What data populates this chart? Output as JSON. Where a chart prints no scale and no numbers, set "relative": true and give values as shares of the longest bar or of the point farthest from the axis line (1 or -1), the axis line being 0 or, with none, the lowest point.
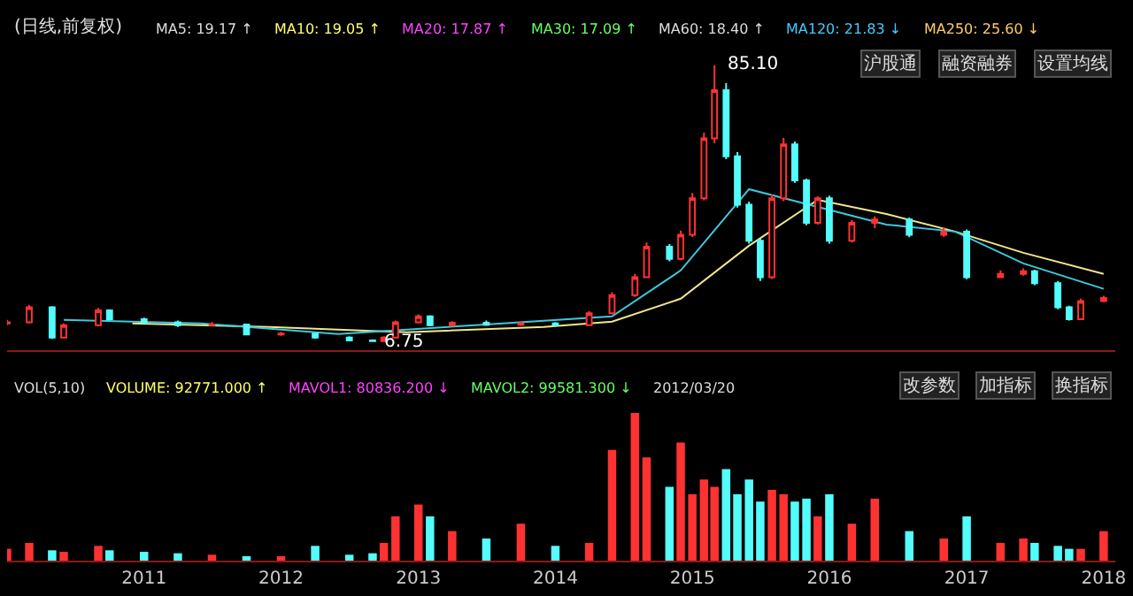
{
  "chart_data": [
    {
      "type": "candlestick",
      "title": "(日线,前复权)",
      "x": [
        "2010-01",
        "2010-03",
        "2010-05",
        "2010-06",
        "2010-09",
        "2010-10",
        "2011-01",
        "2011-04",
        "2011-07",
        "2011-10",
        "2012-01",
        "2012-04",
        "2012-07",
        "2012-09",
        "2012-10",
        "2012-11",
        "2013-01",
        "2013-02",
        "2013-04",
        "2013-07",
        "2013-10",
        "2014-01",
        "2014-04",
        "2014-06",
        "2014-08",
        "2014-09",
        "2014-11",
        "2014-12",
        "2015-01",
        "2015-02",
        "2015-03",
        "2015-04",
        "2015-05",
        "2015-06",
        "2015-07",
        "2015-08",
        "2015-09",
        "2015-10",
        "2015-11",
        "2015-12",
        "2016-01",
        "2016-03",
        "2016-05",
        "2016-08",
        "2016-11",
        "2017-01",
        "2017-04",
        "2017-06",
        "2017-07",
        "2017-09",
        "2017-10",
        "2017-11",
        "2018-01"
      ],
      "ohlc": [
        [
          12.0,
          13.0,
          11.5,
          12.3
        ],
        [
          12.3,
          17.2,
          12.0,
          16.6
        ],
        [
          16.6,
          16.9,
          7.6,
          8.0
        ],
        [
          8.0,
          12.0,
          7.8,
          11.5
        ],
        [
          11.5,
          16.4,
          11.2,
          15.7
        ],
        [
          15.7,
          16.0,
          12.8,
          13.2
        ],
        [
          13.2,
          13.6,
          11.9,
          12.3
        ],
        [
          12.3,
          12.8,
          11.0,
          11.5
        ],
        [
          11.5,
          12.4,
          11.1,
          11.7
        ],
        [
          11.7,
          11.8,
          8.6,
          8.9
        ],
        [
          8.9,
          9.6,
          8.5,
          9.1
        ],
        [
          9.1,
          9.2,
          7.7,
          8.0
        ],
        [
          8.0,
          8.4,
          7.0,
          7.2
        ],
        [
          7.2,
          7.5,
          6.75,
          7.0
        ],
        [
          7.0,
          8.4,
          6.9,
          8.0
        ],
        [
          8.0,
          12.8,
          7.9,
          12.3
        ],
        [
          12.3,
          14.6,
          12.0,
          14.0
        ],
        [
          14.0,
          14.3,
          11.2,
          11.5
        ],
        [
          11.5,
          12.6,
          11.2,
          12.2
        ],
        [
          12.2,
          12.8,
          11.3,
          11.6
        ],
        [
          11.6,
          12.5,
          11.3,
          12.0
        ],
        [
          12.0,
          12.4,
          11.2,
          11.5
        ],
        [
          11.5,
          15.5,
          11.4,
          14.9
        ],
        [
          14.9,
          20.8,
          14.6,
          20.0
        ],
        [
          20.0,
          26.0,
          19.5,
          25.1
        ],
        [
          25.1,
          34.9,
          24.8,
          33.7
        ],
        [
          33.7,
          34.5,
          29.6,
          30.3
        ],
        [
          30.3,
          38.3,
          29.9,
          37.1
        ],
        [
          37.1,
          48.9,
          36.5,
          47.4
        ],
        [
          47.4,
          66.0,
          46.8,
          64.4
        ],
        [
          64.4,
          85.1,
          63.0,
          78.0
        ],
        [
          78.0,
          80.0,
          58.5,
          59.3
        ],
        [
          59.3,
          60.5,
          44.8,
          45.6
        ],
        [
          45.6,
          46.5,
          34.6,
          35.4
        ],
        [
          35.4,
          36.0,
          24.0,
          25.1
        ],
        [
          25.1,
          48.5,
          24.6,
          47.4
        ],
        [
          47.4,
          64.5,
          46.6,
          62.7
        ],
        [
          62.7,
          63.5,
          51.8,
          52.5
        ],
        [
          52.5,
          53.0,
          39.8,
          40.5
        ],
        [
          40.5,
          48.0,
          40.0,
          47.4
        ],
        [
          47.4,
          48.2,
          34.6,
          35.4
        ],
        [
          35.4,
          41.2,
          34.9,
          40.5
        ],
        [
          40.5,
          42.3,
          39.0,
          41.4
        ],
        [
          41.4,
          42.0,
          36.4,
          37.1
        ],
        [
          37.1,
          39.2,
          36.5,
          38.0
        ],
        [
          38.0,
          38.6,
          24.5,
          25.1
        ],
        [
          25.1,
          27.0,
          24.8,
          26.0
        ],
        [
          26.0,
          27.6,
          25.5,
          26.8
        ],
        [
          26.8,
          27.2,
          22.8,
          23.4
        ],
        [
          23.4,
          24.0,
          16.0,
          16.6
        ],
        [
          16.6,
          17.0,
          12.8,
          13.2
        ],
        [
          13.2,
          19.0,
          13.0,
          18.3
        ],
        [
          18.3,
          19.8,
          18.0,
          19.2
        ]
      ],
      "series": [
        {
          "type": "line",
          "color": "#f0e68c",
          "x": [
            "2010-12",
            "2011-12",
            "2012-12",
            "2013-12",
            "2014-06",
            "2014-12",
            "2015-06",
            "2015-12",
            "2016-06",
            "2016-12",
            "2017-06",
            "2018-01"
          ],
          "values": [
            12.0,
            11.0,
            9.5,
            11.0,
            12.5,
            19.0,
            34.0,
            47.0,
            43.0,
            38.0,
            32.0,
            26.0
          ]
        },
        {
          "type": "line",
          "color": "#3cc8dc",
          "x": [
            "2010-06",
            "2011-06",
            "2012-06",
            "2013-06",
            "2014-06",
            "2014-12",
            "2015-06",
            "2015-12",
            "2016-06",
            "2016-12",
            "2017-06",
            "2018-01"
          ],
          "values": [
            13.0,
            12.0,
            9.0,
            11.5,
            14.0,
            27.0,
            50.0,
            45.0,
            40.0,
            38.0,
            29.0,
            21.8
          ]
        }
      ],
      "xlim": [
        "2010-01-01",
        "2018-02-01"
      ],
      "tick_labels": false,
      "annotations": [
        "MA5: 19.17 ↑",
        "MA10: 19.05 ↑",
        "MA20: 17.87 ↑",
        "MA30: 17.09 ↑",
        "MA60: 18.40 ↑",
        "MA120: 21.83 ↓",
        "MA250: 25.60 ↓",
        "沪股通",
        "融资融券",
        "设置均线",
        {
          "text": "85.10",
          "x": "2015-03",
          "y": 85.1
        },
        {
          "text": "6.75",
          "x": "2012-09",
          "y": 6.75
        }
      ]
    },
    {
      "type": "bar",
      "relative": true,
      "x": [
        "2010-01",
        "2010-03",
        "2010-05",
        "2010-06",
        "2010-09",
        "2010-10",
        "2011-01",
        "2011-04",
        "2011-07",
        "2011-10",
        "2012-01",
        "2012-04",
        "2012-07",
        "2012-09",
        "2012-10",
        "2012-11",
        "2013-01",
        "2013-02",
        "2013-04",
        "2013-07",
        "2013-10",
        "2014-01",
        "2014-04",
        "2014-06",
        "2014-08",
        "2014-09",
        "2014-11",
        "2014-12",
        "2015-01",
        "2015-02",
        "2015-03",
        "2015-04",
        "2015-05",
        "2015-06",
        "2015-07",
        "2015-08",
        "2015-09",
        "2015-10",
        "2015-11",
        "2015-12",
        "2016-01",
        "2016-03",
        "2016-05",
        "2016-08",
        "2016-11",
        "2017-01",
        "2017-04",
        "2017-06",
        "2017-07",
        "2017-09",
        "2017-10",
        "2017-11",
        "2018-01"
      ],
      "values": [
        0.08,
        0.12,
        0.07,
        0.06,
        0.1,
        0.07,
        0.06,
        0.05,
        0.04,
        0.03,
        0.03,
        0.1,
        0.04,
        0.05,
        0.12,
        0.3,
        0.38,
        0.3,
        0.2,
        0.15,
        0.25,
        0.1,
        0.12,
        0.75,
        1.0,
        0.7,
        0.5,
        0.8,
        0.45,
        0.55,
        0.5,
        0.62,
        0.45,
        0.55,
        0.4,
        0.48,
        0.45,
        0.4,
        0.42,
        0.3,
        0.45,
        0.25,
        0.42,
        0.2,
        0.15,
        0.3,
        0.12,
        0.15,
        0.12,
        0.1,
        0.08,
        0.08,
        0.2
      ],
      "colors": [
        "#ff3232",
        "#ff3232",
        "#54fcfc",
        "#ff3232",
        "#ff3232",
        "#54fcfc",
        "#54fcfc",
        "#54fcfc",
        "#ff3232",
        "#54fcfc",
        "#ff3232",
        "#54fcfc",
        "#54fcfc",
        "#54fcfc",
        "#ff3232",
        "#ff3232",
        "#ff3232",
        "#54fcfc",
        "#ff3232",
        "#54fcfc",
        "#ff3232",
        "#54fcfc",
        "#ff3232",
        "#ff3232",
        "#ff3232",
        "#ff3232",
        "#54fcfc",
        "#ff3232",
        "#ff3232",
        "#ff3232",
        "#ff3232",
        "#54fcfc",
        "#54fcfc",
        "#54fcfc",
        "#54fcfc",
        "#ff3232",
        "#ff3232",
        "#54fcfc",
        "#54fcfc",
        "#ff3232",
        "#54fcfc",
        "#ff3232",
        "#ff3232",
        "#54fcfc",
        "#ff3232",
        "#54fcfc",
        "#ff3232",
        "#ff3232",
        "#54fcfc",
        "#54fcfc",
        "#54fcfc",
        "#ff3232",
        "#ff3232"
      ],
      "xlim": [
        "2010-01-01",
        "2018-02-01"
      ],
      "xticks": [
        {
          "value": "2011-01-01",
          "label": "2011"
        },
        {
          "value": "2012-01-01",
          "label": "2012"
        },
        {
          "value": "2013-01-01",
          "label": "2013"
        },
        {
          "value": "2014-01-01",
          "label": "2014"
        },
        {
          "value": "2015-01-01",
          "label": "2015"
        },
        {
          "value": "2016-01-01",
          "label": "2016"
        },
        {
          "value": "2017-01-01",
          "label": "2017"
        },
        {
          "value": "2018-01-01",
          "label": "2018"
        }
      ],
      "tick_labels": "x",
      "annotations": [
        "VOL(5,10)",
        "VOLUME: 92771.000 ↑",
        "MAVOL1: 80836.200 ↓",
        "MAVOL2: 99581.300 ↓",
        "2012/03/20",
        "改参数",
        "加指标",
        "换指标"
      ]
    }
  ]
}
